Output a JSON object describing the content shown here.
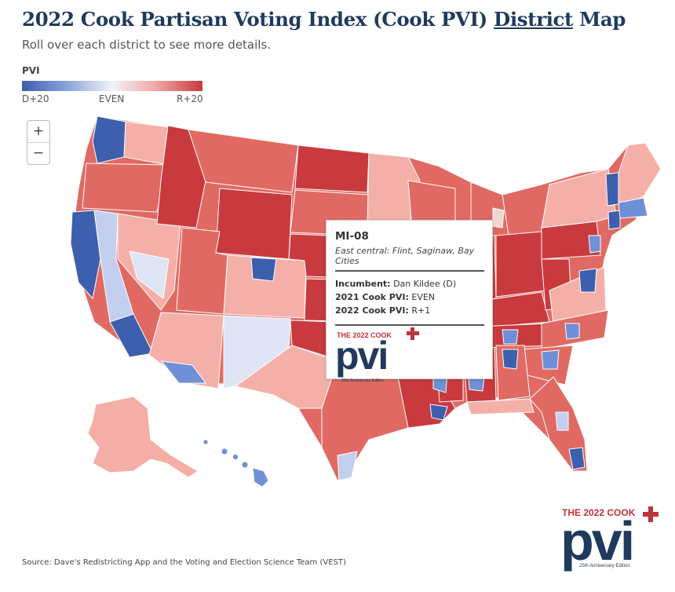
{
  "header": {
    "title_prefix": "2022 Cook Partisan Voting Index (Cook PVI)",
    "title_link": "District",
    "title_suffix": "Map",
    "subtitle": "Roll over each district to see more details."
  },
  "legend": {
    "title": "PVI",
    "left_label": "D+20",
    "mid_label": "EVEN",
    "right_label": "R+20",
    "colors": [
      "#3d5fae",
      "#8ea6dd",
      "#f2f2f7",
      "#f2a6a6",
      "#c83a3e"
    ]
  },
  "zoom": {
    "in_label": "+",
    "out_label": "−"
  },
  "tooltip": {
    "district": "MI-08",
    "region": "East central: Flint, Saginaw, Bay Cities",
    "incumbent_label": "Incumbent:",
    "incumbent_value": "Dan Kildee (D)",
    "pvi2021_label": "2021 Cook PVI:",
    "pvi2021_value": "EVEN",
    "pvi2022_label": "2022 Cook PVI:",
    "pvi2022_value": "R+1"
  },
  "logo": {
    "top_text": "THE 2022 COOK",
    "main_text": "pvi",
    "sub_text": "25th Anniversary Edition"
  },
  "source": "Source: Dave's Redistricting App and the Voting and Election Science Team (VEST)",
  "colors": {
    "strong_d": "#3d5fae",
    "lean_d": "#c3cfee",
    "even": "#f0f0f5",
    "lean_r": "#f4b0a8",
    "strong_r": "#c83a3e",
    "mid_r": "#e06a63"
  }
}
